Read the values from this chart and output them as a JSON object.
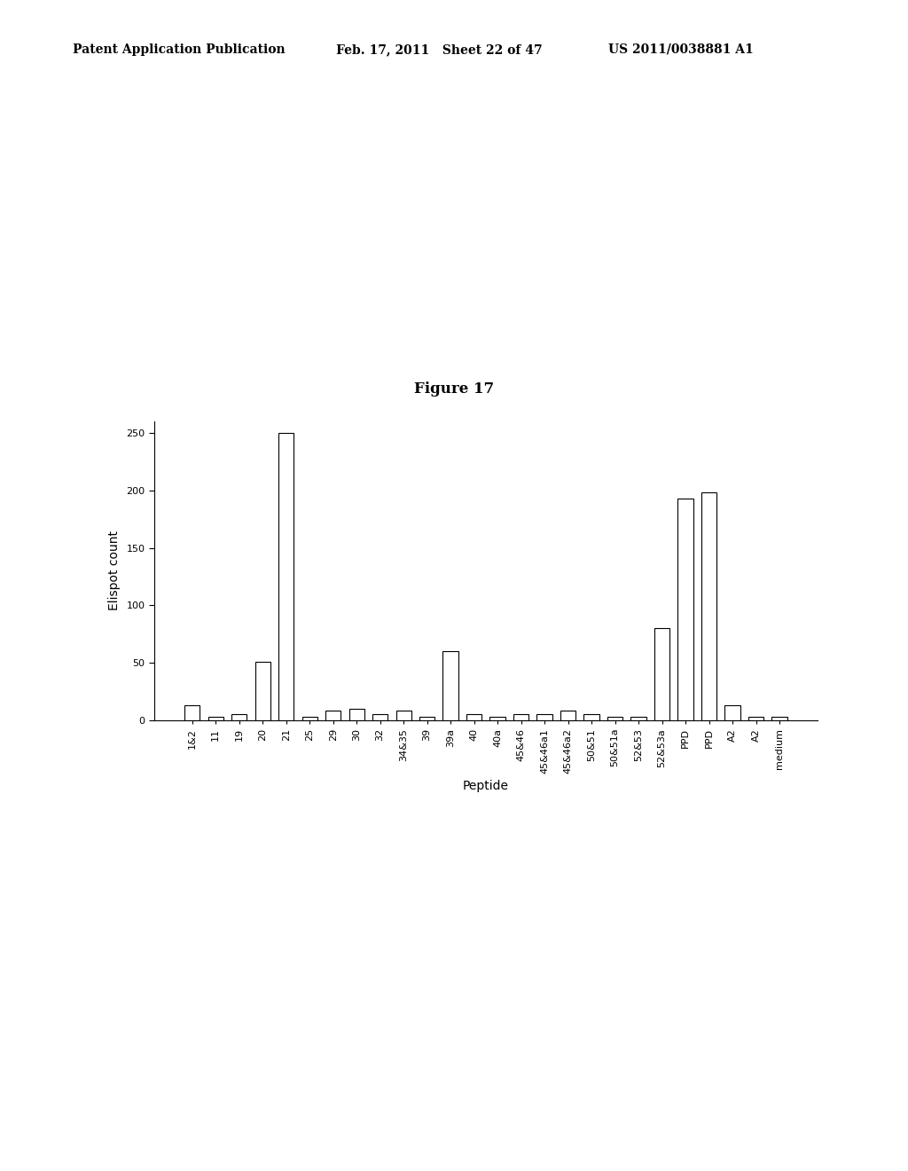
{
  "categories": [
    "1&2",
    "11",
    "19",
    "20",
    "21",
    "25",
    "29",
    "30",
    "32",
    "34&35",
    "39",
    "39a",
    "40",
    "40a",
    "45&46",
    "45&46a1",
    "45&46a2",
    "50&51",
    "50&51a",
    "52&53",
    "52&53a",
    "PPD",
    "PPD",
    "A2",
    "A2",
    "medium"
  ],
  "values": [
    13,
    3,
    5,
    51,
    250,
    3,
    8,
    10,
    5,
    8,
    3,
    60,
    5,
    3,
    5,
    5,
    8,
    5,
    3,
    3,
    80,
    193,
    198,
    13,
    3,
    3
  ],
  "bar_color": "#ffffff",
  "bar_edge_color": "#000000",
  "fig_title": "Figure 17",
  "xlabel": "Peptide",
  "ylabel": "Elispot count",
  "ylim": [
    0,
    260
  ],
  "yticks": [
    0,
    50,
    100,
    150,
    200,
    250
  ],
  "header_left": "Patent Application Publication",
  "header_mid": "Feb. 17, 2011   Sheet 22 of 47",
  "header_right": "US 2011/0038881 A1",
  "bar_width": 0.65,
  "background_color": "#ffffff",
  "header_fontsize": 10,
  "title_fontsize": 12,
  "axis_label_fontsize": 10,
  "tick_fontsize": 8
}
